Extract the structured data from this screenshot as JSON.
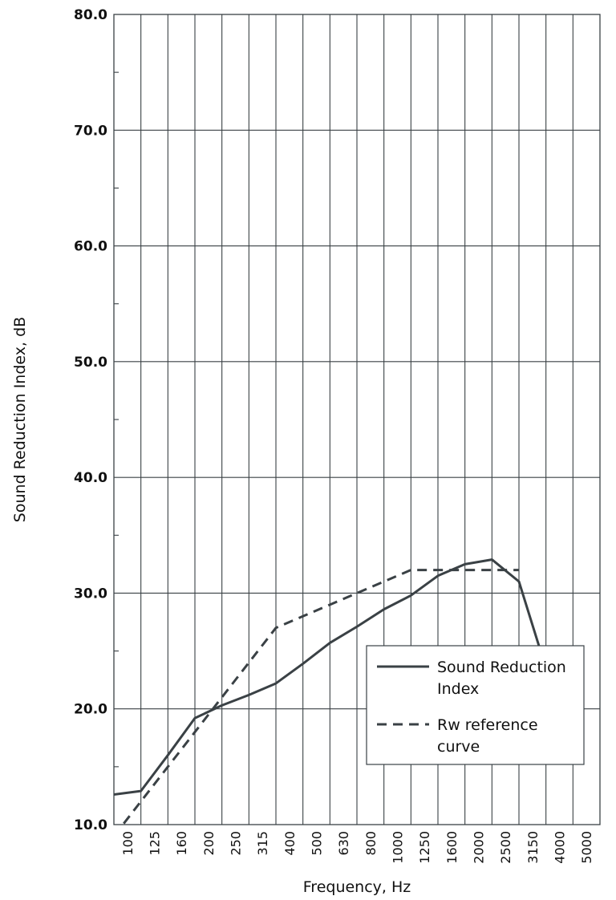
{
  "chart_data": {
    "type": "line",
    "title": "",
    "xlabel": "Frequency, Hz",
    "ylabel": "Sound Reduction Index, dB",
    "categories": [
      "100",
      "125",
      "160",
      "200",
      "250",
      "315",
      "400",
      "500",
      "630",
      "800",
      "1000",
      "1250",
      "1600",
      "2000",
      "2500",
      "3150",
      "4000",
      "5000"
    ],
    "ylim": [
      10,
      80
    ],
    "yticks": [
      "10.0",
      "20.0",
      "30.0",
      "40.0",
      "50.0",
      "60.0",
      "70.0",
      "80.0"
    ],
    "grid": true,
    "legend_position": "lower-right",
    "series": [
      {
        "name": "Sound Reduction Index",
        "style": "solid",
        "color": "#3a4145",
        "values": [
          12.6,
          12.9,
          16.0,
          19.2,
          20.3,
          21.2,
          22.2,
          23.9,
          25.7,
          27.1,
          28.6,
          29.8,
          31.5,
          32.5,
          32.9,
          31.0,
          23.5,
          24.7
        ]
      },
      {
        "name": "Rw reference curve",
        "style": "dashed",
        "color": "#3a4145",
        "values": [
          9,
          12,
          15,
          18,
          21,
          24,
          27,
          28,
          29,
          30,
          31,
          32,
          32,
          32,
          32,
          32,
          null,
          null
        ]
      }
    ],
    "legend": {
      "entries": [
        {
          "lines": [
            "Sound Reduction",
            "Index"
          ]
        },
        {
          "lines": [
            "Rw reference",
            "curve"
          ]
        }
      ]
    }
  }
}
